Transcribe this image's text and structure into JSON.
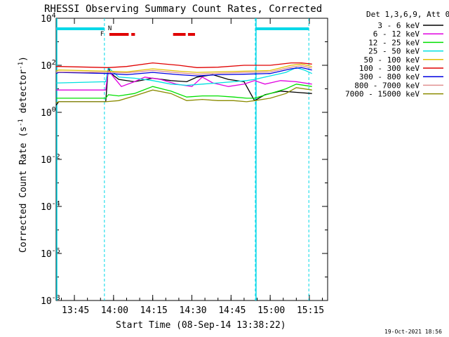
{
  "chart_data": {
    "type": "line",
    "title": "RHESSI Observing Summary Count Rates, Corrected",
    "xlabel": "Start Time (08-Sep-14 13:38:22)",
    "ylabel": "Corrected Count Rate (s-1 detector-1)",
    "ylabel_main": "Corrected Count Rate (s",
    "ylabel_sup1": "-1",
    "ylabel_mid": " detector",
    "ylabel_sup2": "-1",
    "ylabel_end": ")",
    "y_scale": "log",
    "ylim_exp": [
      -8,
      4
    ],
    "xlim_min": [
      818,
      922
    ],
    "y_ticks": [
      {
        "base": "10",
        "exp": "-8",
        "value_exp": -8
      },
      {
        "base": "10",
        "exp": "-6",
        "value_exp": -6
      },
      {
        "base": "10",
        "exp": "-4",
        "value_exp": -4
      },
      {
        "base": "10",
        "exp": "-2",
        "value_exp": -2
      },
      {
        "base": "10",
        "exp": "0",
        "value_exp": 0
      },
      {
        "base": "10",
        "exp": "2",
        "value_exp": 2
      },
      {
        "base": "10",
        "exp": "4",
        "value_exp": 4
      }
    ],
    "x_ticks": [
      {
        "label": "13:45",
        "min": 825
      },
      {
        "label": "14:00",
        "min": 840
      },
      {
        "label": "14:15",
        "min": 855
      },
      {
        "label": "14:30",
        "min": 870
      },
      {
        "label": "14:45",
        "min": 885
      },
      {
        "label": "15:00",
        "min": 900
      },
      {
        "label": "15:15",
        "min": 915
      }
    ],
    "legend_title": "Det 1,3,6,9, Att 0",
    "legend_position": "right",
    "series": [
      {
        "name": "3 - 6 keV",
        "color": "#000000",
        "x": [
          818,
          819,
          837,
          838,
          839,
          842,
          848,
          855,
          862,
          868,
          872,
          878,
          884,
          890,
          894,
          898,
          904,
          910,
          916
        ],
        "y_exp": [
          0.3,
          0.45,
          0.45,
          1.9,
          1.65,
          1.4,
          1.3,
          1.45,
          1.35,
          1.3,
          1.5,
          1.6,
          1.4,
          1.3,
          0.5,
          0.75,
          0.9,
          0.85,
          0.8
        ]
      },
      {
        "name": "6 - 12 keV",
        "color": "#e000e0",
        "x": [
          818,
          819,
          837,
          838,
          840,
          843,
          848,
          852,
          858,
          864,
          870,
          874,
          878,
          884,
          890,
          894,
          898,
          904,
          910,
          916
        ],
        "y_exp": [
          0.95,
          0.95,
          0.95,
          1.8,
          1.5,
          1.1,
          1.3,
          1.5,
          1.4,
          1.2,
          1.1,
          1.5,
          1.25,
          1.1,
          1.2,
          1.35,
          1.2,
          1.35,
          1.3,
          1.2
        ]
      },
      {
        "name": "12 - 25 keV",
        "color": "#00e000",
        "x": [
          818,
          819,
          837,
          838,
          842,
          848,
          855,
          862,
          868,
          874,
          880,
          886,
          891,
          894,
          900,
          906,
          910,
          916
        ],
        "y_exp": [
          0.6,
          0.6,
          0.6,
          0.75,
          0.7,
          0.8,
          1.1,
          0.9,
          0.65,
          0.7,
          0.7,
          0.65,
          0.6,
          0.6,
          0.8,
          1.0,
          1.2,
          1.1
        ]
      },
      {
        "name": "25 - 50 keV",
        "color": "#00e0e0",
        "x": [
          818,
          819,
          837,
          838,
          842,
          848,
          855,
          862,
          868,
          874,
          880,
          886,
          891,
          894,
          900,
          906,
          910,
          913,
          916
        ],
        "y_exp": [
          1.25,
          1.25,
          1.3,
          1.9,
          1.5,
          1.45,
          1.35,
          1.2,
          1.15,
          1.2,
          1.25,
          1.3,
          1.35,
          1.4,
          1.55,
          1.7,
          1.9,
          1.8,
          1.65
        ]
      },
      {
        "name": "50 - 100 keV",
        "color": "#e0c000",
        "x": [
          818,
          819,
          838,
          845,
          855,
          865,
          872,
          880,
          890,
          900,
          908,
          912,
          916
        ],
        "y_exp": [
          1.75,
          1.8,
          1.75,
          1.72,
          1.85,
          1.75,
          1.7,
          1.72,
          1.75,
          1.78,
          2.0,
          2.05,
          1.95
        ]
      },
      {
        "name": "100 - 300 keV",
        "color": "#e00000",
        "x": [
          818,
          819,
          838,
          845,
          855,
          865,
          872,
          880,
          890,
          900,
          908,
          912,
          916
        ],
        "y_exp": [
          1.95,
          1.95,
          1.9,
          1.95,
          2.1,
          2.0,
          1.9,
          1.92,
          2.0,
          2.0,
          2.1,
          2.1,
          2.05
        ]
      },
      {
        "name": "300 - 800 keV",
        "color": "#0000e0",
        "x": [
          818,
          819,
          838,
          845,
          855,
          865,
          872,
          880,
          890,
          900,
          908,
          912,
          916
        ],
        "y_exp": [
          1.65,
          1.7,
          1.65,
          1.6,
          1.7,
          1.6,
          1.55,
          1.6,
          1.62,
          1.65,
          1.85,
          1.9,
          1.8
        ]
      },
      {
        "name": "800 - 7000 keV",
        "color": "#e09090",
        "x": [
          818,
          819,
          838,
          845,
          855,
          865,
          872,
          880,
          890,
          900,
          908,
          912,
          916
        ],
        "y_exp": [
          1.7,
          1.72,
          1.7,
          1.68,
          1.78,
          1.68,
          1.62,
          1.66,
          1.7,
          1.72,
          1.92,
          1.98,
          1.88
        ]
      },
      {
        "name": "7000 - 15000 keV",
        "color": "#8b8b00",
        "x": [
          818,
          819,
          837,
          842,
          848,
          855,
          862,
          868,
          874,
          880,
          886,
          891,
          894,
          900,
          906,
          910,
          916
        ],
        "y_exp": [
          0.4,
          0.45,
          0.45,
          0.5,
          0.7,
          0.95,
          0.8,
          0.5,
          0.55,
          0.5,
          0.5,
          0.45,
          0.5,
          0.6,
          0.8,
          1.05,
          0.95
        ]
      }
    ],
    "night_boundaries_min": [
      836.5,
      894.3,
      914.8
    ],
    "saa_boundaries_min": [
      818,
      894.3
    ],
    "flag_label_f": "F",
    "flag_label_n": "N",
    "flare_bars_min": [
      [
        838.4,
        845.8
      ],
      [
        846.8,
        848.2
      ],
      [
        862.8,
        867.6
      ],
      [
        868.5,
        871.2
      ]
    ],
    "daylight_bars_min": [
      [
        818,
        836.5
      ],
      [
        894.3,
        914.8
      ]
    ],
    "timestamp": "19-Oct-2021 18:56"
  }
}
